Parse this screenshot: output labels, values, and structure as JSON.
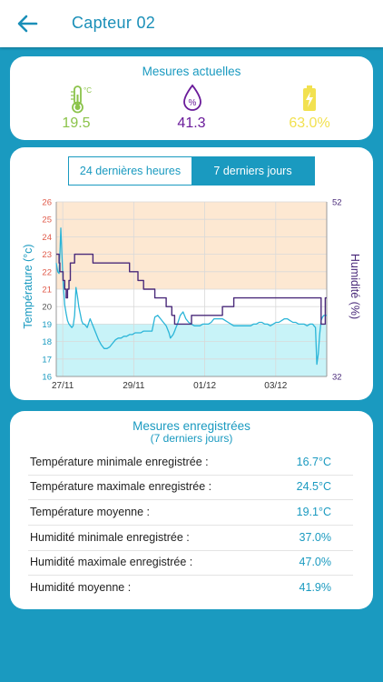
{
  "header": {
    "title": "Capteur 02",
    "back_icon": "arrow-left-icon"
  },
  "current": {
    "title": "Mesures actuelles",
    "temperature": {
      "value": "19.5",
      "icon": "thermometer-icon",
      "unit_icon_text": "°C",
      "color": "#8bc34a"
    },
    "humidity": {
      "value": "41.3",
      "icon": "humidity-drop-icon",
      "icon_text": "%",
      "color": "#6a1b9a"
    },
    "battery": {
      "value": "63.0%",
      "icon": "battery-charging-icon",
      "color": "#f2e150"
    }
  },
  "range_tabs": {
    "day": "24 dernières heures",
    "week": "7 derniers jours",
    "selected": "week"
  },
  "chart_data": {
    "type": "line",
    "x_tick_labels": [
      "27/11",
      "29/11",
      "01/12",
      "03/12"
    ],
    "x": [
      0,
      0.5,
      1,
      1.3,
      1.6,
      2,
      2.4,
      2.7,
      3,
      3.5,
      4,
      4.5,
      5,
      5.5,
      6,
      6.5,
      7,
      7.5,
      8,
      8.5,
      9,
      9.5,
      10,
      11,
      12,
      13,
      14,
      15,
      16,
      17,
      18,
      19,
      20,
      21,
      22,
      23,
      24,
      25,
      26,
      27,
      28,
      29,
      30,
      31,
      32,
      33,
      34,
      35,
      36,
      37,
      38,
      39,
      40,
      40.5,
      41,
      41.5,
      42,
      42.5,
      43,
      44,
      45,
      46,
      47,
      48,
      49,
      50,
      51,
      52,
      53,
      54,
      55,
      56,
      57,
      58,
      59,
      60,
      61,
      62,
      63,
      64,
      65,
      66,
      67,
      68,
      69,
      70,
      71,
      72,
      73,
      74,
      75,
      76,
      77,
      78,
      79,
      80,
      81,
      82,
      83,
      84,
      85,
      86,
      87,
      88,
      89,
      90,
      91,
      91.5,
      92,
      92.5,
      93,
      93.5,
      94,
      94.5,
      95,
      95.5,
      96
    ],
    "series": [
      {
        "name": "Température",
        "unit": "°C",
        "color": "#2bb5d8",
        "values": [
          22.5,
          22.0,
          21.9,
          23.0,
          24.5,
          23.0,
          21.5,
          20.8,
          20.1,
          19.6,
          19.2,
          19.0,
          18.9,
          18.8,
          18.9,
          19.5,
          21.1,
          20.6,
          20.0,
          19.6,
          19.2,
          19.0,
          19.0,
          18.8,
          19.3,
          18.9,
          18.5,
          18.1,
          17.8,
          17.6,
          17.6,
          17.7,
          17.9,
          18.1,
          18.2,
          18.2,
          18.3,
          18.3,
          18.4,
          18.4,
          18.5,
          18.5,
          18.5,
          18.6,
          18.6,
          18.6,
          18.6,
          19.4,
          19.5,
          19.3,
          19.1,
          18.9,
          18.5,
          18.2,
          18.3,
          18.4,
          18.6,
          18.8,
          19.0,
          19.5,
          19.7,
          19.3,
          19.1,
          19.0,
          18.9,
          18.9,
          18.9,
          19.0,
          19.0,
          19.0,
          19.1,
          19.3,
          19.3,
          19.3,
          19.3,
          19.2,
          19.1,
          19.0,
          18.9,
          18.9,
          18.9,
          18.9,
          18.9,
          18.9,
          18.9,
          19.0,
          19.0,
          19.1,
          19.1,
          19.0,
          19.0,
          18.9,
          19.0,
          19.1,
          19.1,
          19.2,
          19.3,
          19.3,
          19.2,
          19.1,
          19.1,
          19.0,
          19.0,
          19.0,
          18.9,
          19.0,
          19.0,
          18.9,
          18.8,
          16.7,
          17.3,
          18.4,
          19.2,
          19.4,
          19.5,
          19.5,
          19.5
        ]
      },
      {
        "name": "Humidité",
        "unit": "%",
        "color": "#4a2a7a",
        "values": [
          46,
          46,
          45,
          44,
          44,
          44,
          43,
          43,
          42,
          41,
          42,
          43,
          45,
          45,
          45,
          46,
          46,
          46,
          46,
          46,
          46,
          46,
          46,
          46,
          46,
          45,
          45,
          45,
          45,
          45,
          45,
          45,
          45,
          45,
          45,
          45,
          45,
          45,
          44,
          44,
          44,
          43,
          43,
          42,
          42,
          42,
          42,
          41,
          41,
          41,
          41,
          40,
          40,
          40,
          39,
          39,
          38,
          38,
          38,
          38,
          38,
          38,
          38,
          39,
          39,
          39,
          39,
          39,
          39,
          39,
          39,
          39,
          39,
          39,
          40,
          40,
          40,
          40,
          41,
          41,
          41,
          41,
          41,
          41,
          41,
          41,
          41,
          41,
          41,
          41,
          41,
          41,
          41,
          41,
          41,
          41,
          41,
          41,
          41,
          41,
          41,
          41,
          41,
          41,
          41,
          41,
          41,
          41,
          41,
          41,
          41,
          41,
          38,
          38,
          38,
          41,
          41
        ]
      }
    ],
    "y_left": {
      "label": "Température (°c)",
      "min": 16,
      "max": 26,
      "ticks": [
        "16",
        "17",
        "18",
        "19",
        "20",
        "21",
        "22",
        "23",
        "24",
        "25",
        "26"
      ]
    },
    "y_right": {
      "label": "Humidité (%)",
      "min": 32,
      "max": 52,
      "ticks": [
        "52",
        "32"
      ]
    },
    "bands": [
      {
        "from": 21,
        "to": 26,
        "color": "#fde8d2"
      },
      {
        "from": 16,
        "to": 19,
        "color": "#c8f3f8"
      }
    ],
    "grid": true
  },
  "records": {
    "title": "Mesures enregistrées",
    "subtitle": "(7 derniers jours)",
    "rows": [
      {
        "label": "Température minimale enregistrée :",
        "value": "16.7°C"
      },
      {
        "label": "Température maximale enregistrée :",
        "value": "24.5°C"
      },
      {
        "label": "Température moyenne :",
        "value": "19.1°C"
      },
      {
        "label": "Humidité minimale enregistrée :",
        "value": "37.0%"
      },
      {
        "label": "Humidité maximale enregistrée :",
        "value": "47.0%"
      },
      {
        "label": "Humidité moyenne :",
        "value": "41.9%"
      }
    ]
  }
}
